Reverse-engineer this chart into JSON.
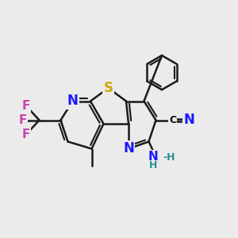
{
  "background_color": "#ebebeb",
  "bond_color": "#1a1a1a",
  "bond_width": 1.8,
  "atoms": {
    "S": {
      "color": "#ccaa00",
      "fontsize": 12,
      "fontweight": "bold"
    },
    "N": {
      "color": "#1a1aff",
      "fontsize": 12,
      "fontweight": "bold"
    },
    "F": {
      "color": "#cc44aa",
      "fontsize": 11,
      "fontweight": "bold"
    },
    "C": {
      "color": "#111111",
      "fontsize": 10,
      "fontweight": "bold"
    },
    "NH2": {
      "color": "#2a9090",
      "fontsize": 11,
      "fontweight": "bold"
    }
  },
  "figsize": [
    3.0,
    3.0
  ],
  "dpi": 100
}
